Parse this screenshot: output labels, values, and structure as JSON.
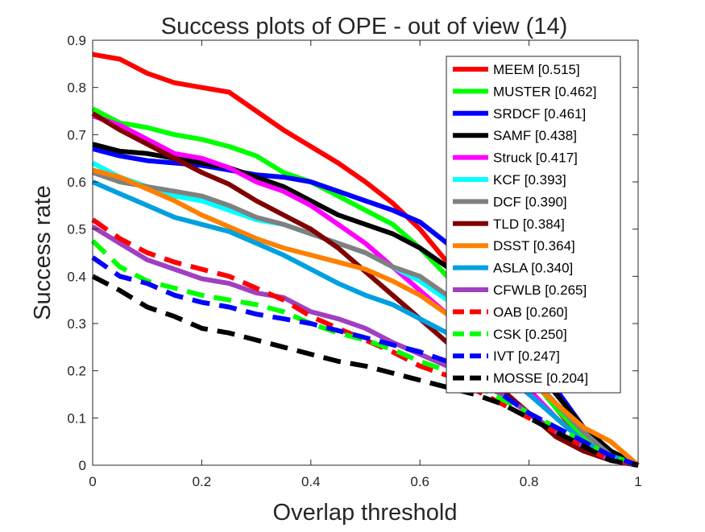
{
  "chart_data": {
    "type": "line",
    "title": "Success plots of OPE - out of view (14)",
    "xlabel": "Overlap threshold",
    "ylabel": "Success rate",
    "xlim": [
      0,
      1
    ],
    "ylim": [
      0,
      0.9
    ],
    "xticks": [
      "0",
      "0.2",
      "0.4",
      "0.6",
      "0.8",
      "1"
    ],
    "yticks": [
      "0",
      "0.1",
      "0.2",
      "0.3",
      "0.4",
      "0.5",
      "0.6",
      "0.7",
      "0.8",
      "0.9"
    ],
    "grid": false,
    "legend_position": "top-right",
    "x": [
      0,
      0.05,
      0.1,
      0.15,
      0.2,
      0.25,
      0.3,
      0.35,
      0.4,
      0.45,
      0.5,
      0.55,
      0.6,
      0.65,
      0.7,
      0.75,
      0.8,
      0.85,
      0.9,
      0.95,
      1
    ],
    "series": [
      {
        "name": "MEEM [0.515]",
        "color": "#ff0000",
        "dash": "solid",
        "values": [
          0.87,
          0.86,
          0.83,
          0.81,
          0.8,
          0.79,
          0.75,
          0.71,
          0.675,
          0.64,
          0.6,
          0.555,
          0.5,
          0.43,
          0.36,
          0.28,
          0.2,
          0.12,
          0.05,
          0.01,
          0.0
        ]
      },
      {
        "name": "MUSTER [0.462]",
        "color": "#00ff00",
        "dash": "solid",
        "values": [
          0.755,
          0.725,
          0.715,
          0.7,
          0.69,
          0.675,
          0.655,
          0.62,
          0.6,
          0.57,
          0.54,
          0.51,
          0.46,
          0.4,
          0.33,
          0.26,
          0.19,
          0.12,
          0.06,
          0.02,
          0.0
        ]
      },
      {
        "name": "SRDCF [0.461]",
        "color": "#0000ff",
        "dash": "solid",
        "values": [
          0.67,
          0.655,
          0.645,
          0.64,
          0.635,
          0.625,
          0.615,
          0.61,
          0.6,
          0.58,
          0.56,
          0.54,
          0.515,
          0.47,
          0.4,
          0.32,
          0.24,
          0.16,
          0.08,
          0.03,
          0.0
        ]
      },
      {
        "name": "SAMF [0.438]",
        "color": "#000000",
        "dash": "solid",
        "values": [
          0.68,
          0.665,
          0.66,
          0.65,
          0.64,
          0.63,
          0.61,
          0.59,
          0.56,
          0.53,
          0.51,
          0.49,
          0.46,
          0.42,
          0.36,
          0.29,
          0.22,
          0.15,
          0.08,
          0.03,
          0.0
        ]
      },
      {
        "name": "Struck [0.417]",
        "color": "#ff00ff",
        "dash": "solid",
        "values": [
          0.74,
          0.72,
          0.69,
          0.66,
          0.65,
          0.63,
          0.6,
          0.58,
          0.55,
          0.51,
          0.47,
          0.42,
          0.37,
          0.32,
          0.27,
          0.22,
          0.16,
          0.1,
          0.05,
          0.01,
          0.0
        ]
      },
      {
        "name": "KCF [0.393]",
        "color": "#00ffff",
        "dash": "solid",
        "values": [
          0.64,
          0.61,
          0.59,
          0.57,
          0.56,
          0.54,
          0.52,
          0.51,
          0.49,
          0.47,
          0.45,
          0.42,
          0.39,
          0.35,
          0.3,
          0.25,
          0.19,
          0.13,
          0.07,
          0.02,
          0.0
        ]
      },
      {
        "name": "DCF [0.390]",
        "color": "#808080",
        "dash": "solid",
        "values": [
          0.62,
          0.6,
          0.59,
          0.58,
          0.57,
          0.55,
          0.525,
          0.51,
          0.49,
          0.47,
          0.45,
          0.42,
          0.4,
          0.36,
          0.31,
          0.25,
          0.19,
          0.13,
          0.07,
          0.02,
          0.0
        ]
      },
      {
        "name": "TLD [0.384]",
        "color": "#800000",
        "dash": "solid",
        "values": [
          0.745,
          0.71,
          0.68,
          0.65,
          0.62,
          0.595,
          0.56,
          0.53,
          0.5,
          0.46,
          0.41,
          0.36,
          0.31,
          0.26,
          0.21,
          0.16,
          0.11,
          0.06,
          0.03,
          0.01,
          0.0
        ]
      },
      {
        "name": "DSST [0.364]",
        "color": "#ff8000",
        "dash": "solid",
        "values": [
          0.625,
          0.61,
          0.585,
          0.56,
          0.53,
          0.505,
          0.48,
          0.46,
          0.445,
          0.43,
          0.415,
          0.39,
          0.36,
          0.32,
          0.28,
          0.23,
          0.18,
          0.13,
          0.08,
          0.05,
          0.0
        ]
      },
      {
        "name": "ASLA [0.340]",
        "color": "#00a0e0",
        "dash": "solid",
        "values": [
          0.6,
          0.575,
          0.55,
          0.525,
          0.51,
          0.495,
          0.47,
          0.445,
          0.415,
          0.385,
          0.36,
          0.34,
          0.31,
          0.28,
          0.24,
          0.2,
          0.15,
          0.1,
          0.05,
          0.02,
          0.0
        ]
      },
      {
        "name": "CFWLB [0.265]",
        "color": "#a040c0",
        "dash": "solid",
        "values": [
          0.505,
          0.47,
          0.435,
          0.415,
          0.395,
          0.385,
          0.365,
          0.355,
          0.325,
          0.31,
          0.29,
          0.26,
          0.235,
          0.21,
          0.18,
          0.15,
          0.11,
          0.07,
          0.04,
          0.01,
          0.0
        ]
      },
      {
        "name": "OAB [0.260]",
        "color": "#ff0000",
        "dash": "dashed",
        "values": [
          0.52,
          0.48,
          0.45,
          0.43,
          0.415,
          0.4,
          0.375,
          0.35,
          0.315,
          0.29,
          0.265,
          0.24,
          0.21,
          0.19,
          0.16,
          0.13,
          0.1,
          0.07,
          0.04,
          0.01,
          0.0
        ]
      },
      {
        "name": "CSK [0.250]",
        "color": "#00ff00",
        "dash": "dashed",
        "values": [
          0.475,
          0.42,
          0.39,
          0.375,
          0.36,
          0.35,
          0.34,
          0.325,
          0.3,
          0.28,
          0.265,
          0.245,
          0.22,
          0.2,
          0.17,
          0.14,
          0.11,
          0.08,
          0.05,
          0.02,
          0.0
        ]
      },
      {
        "name": "IVT [0.247]",
        "color": "#0000ff",
        "dash": "dashed",
        "values": [
          0.44,
          0.4,
          0.385,
          0.36,
          0.345,
          0.335,
          0.32,
          0.31,
          0.3,
          0.285,
          0.27,
          0.255,
          0.24,
          0.22,
          0.19,
          0.15,
          0.11,
          0.08,
          0.05,
          0.02,
          0.0
        ]
      },
      {
        "name": "MOSSE [0.204]",
        "color": "#000000",
        "dash": "dashed",
        "values": [
          0.4,
          0.37,
          0.335,
          0.315,
          0.29,
          0.28,
          0.265,
          0.25,
          0.235,
          0.22,
          0.21,
          0.195,
          0.18,
          0.165,
          0.15,
          0.13,
          0.1,
          0.07,
          0.04,
          0.01,
          0.0
        ]
      }
    ]
  }
}
